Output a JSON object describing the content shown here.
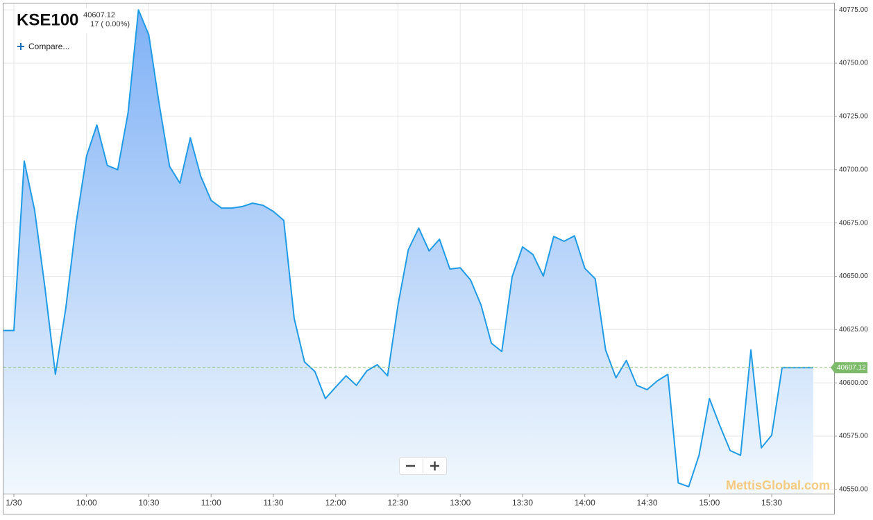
{
  "chart_data": {
    "type": "area-line",
    "title": "KSE100",
    "last_price": 40607.12,
    "change": "17 ( 0.00%)",
    "compare_label": "Compare...",
    "watermark": "MettisGlobal.com",
    "x": [
      "9:20",
      "9:25",
      "9:30",
      "9:35",
      "9:40",
      "9:45",
      "9:50",
      "9:55",
      "10:00",
      "10:05",
      "10:10",
      "10:15",
      "10:20",
      "10:25",
      "10:30",
      "10:35",
      "10:40",
      "10:45",
      "10:50",
      "10:55",
      "11:00",
      "11:05",
      "11:10",
      "11:15",
      "11:20",
      "11:25",
      "11:30",
      "11:35",
      "11:40",
      "11:45",
      "11:50",
      "11:55",
      "12:00",
      "12:05",
      "12:10",
      "12:15",
      "12:20",
      "12:25",
      "12:30",
      "12:35",
      "12:40",
      "12:45",
      "12:50",
      "12:55",
      "13:00",
      "13:05",
      "13:10",
      "13:15",
      "13:20",
      "13:25",
      "13:30",
      "13:35",
      "13:40",
      "13:45",
      "13:50",
      "13:55",
      "14:00",
      "14:05",
      "14:10",
      "14:15",
      "14:20",
      "14:25",
      "14:30",
      "14:35",
      "14:40",
      "14:45",
      "14:50",
      "14:55",
      "15:00",
      "15:05",
      "15:10",
      "15:15",
      "15:20",
      "15:25",
      "15:30",
      "15:35",
      "15:40",
      "15:45",
      "15:50"
    ],
    "series": [
      {
        "name": "KSE100",
        "color": "#1e9be6",
        "values": [
          40624.5,
          40624.5,
          40704.1,
          40681,
          40644.6,
          40604,
          40635,
          40675,
          40706.4,
          40721,
          40702,
          40700,
          40726.6,
          40775,
          40763.3,
          40730.8,
          40701.5,
          40693.7,
          40715,
          40697,
          40685.6,
          40682,
          40682,
          40682.7,
          40684.3,
          40683.3,
          40680.4,
          40676.2,
          40630.3,
          40609.8,
          40605.3,
          40592.6,
          40598,
          40603.3,
          40598.8,
          40605.6,
          40608.5,
          40603.3,
          40636.5,
          40662.5,
          40672.6,
          40661.9,
          40667.4,
          40653.4,
          40654,
          40648.2,
          40636.5,
          40618.6,
          40614.7,
          40649.8,
          40663.8,
          40660.2,
          40650.1,
          40668.7,
          40666.4,
          40669,
          40653.7,
          40648.8,
          40615.4,
          40602.4,
          40610.5,
          40598.8,
          40596.8,
          40601,
          40604,
          40553,
          40551.3,
          40566,
          40592.6,
          40580,
          40568.2,
          40566,
          40615.4,
          40569.5,
          40575.4,
          40607.12,
          40607.12,
          40607.12,
          40607.12
        ]
      }
    ],
    "ylim": [
      40548,
      40778
    ],
    "yticks": [
      {
        "value": 40550,
        "label": "40550.00"
      },
      {
        "value": 40575,
        "label": "40575.00"
      },
      {
        "value": 40600,
        "label": "40600.00"
      },
      {
        "value": 40625,
        "label": "40625.00"
      },
      {
        "value": 40650,
        "label": "40650.00"
      },
      {
        "value": 40675,
        "label": "40675.00"
      },
      {
        "value": 40700,
        "label": "40700.00"
      },
      {
        "value": 40725,
        "label": "40725.00"
      },
      {
        "value": 40750,
        "label": "40750.00"
      },
      {
        "value": 40775,
        "label": "40775.00"
      }
    ],
    "xticks": [
      {
        "value": "9:25",
        "label": "1/30"
      },
      "10:00",
      "10:30",
      "11:00",
      "11:30",
      "12:00",
      "12:30",
      "13:00",
      "13:30",
      "14:00",
      "14:30",
      "15:00",
      "15:30"
    ],
    "grid": true
  }
}
